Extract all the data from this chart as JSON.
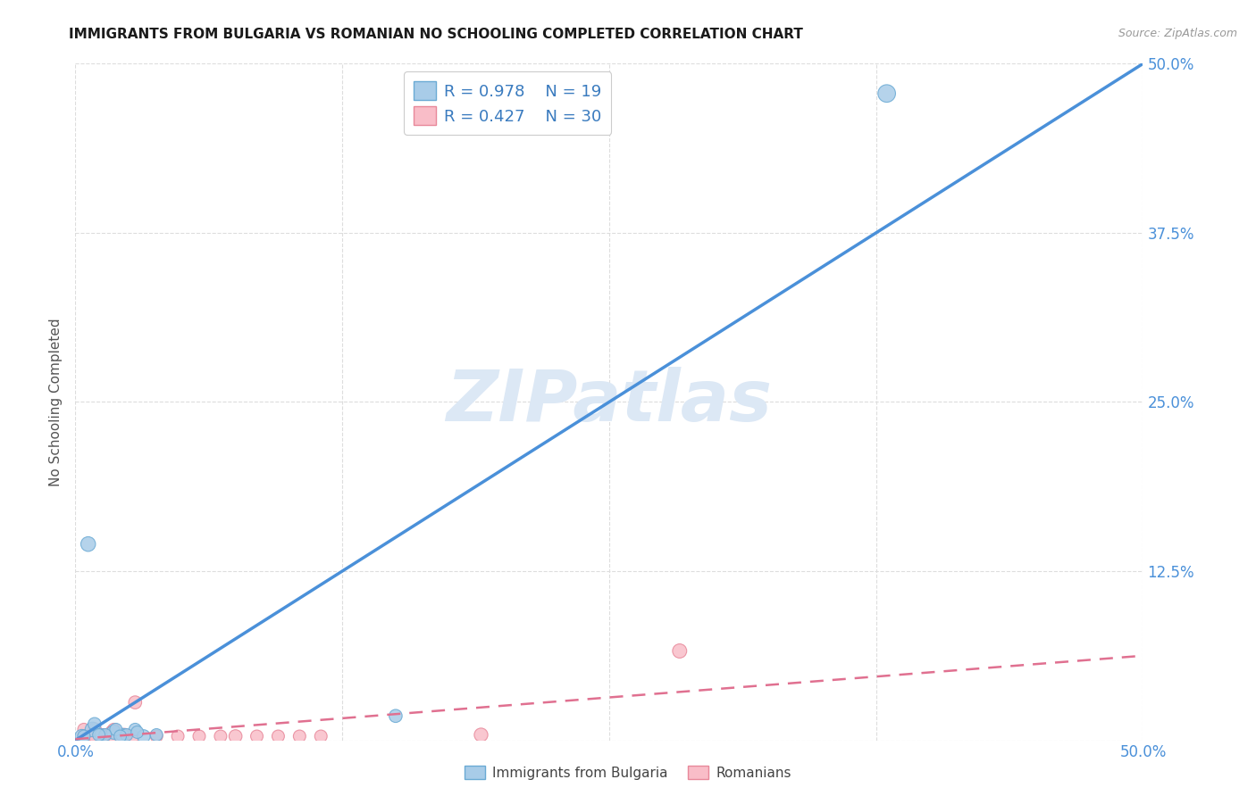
{
  "title": "IMMIGRANTS FROM BULGARIA VS ROMANIAN NO SCHOOLING COMPLETED CORRELATION CHART",
  "source": "Source: ZipAtlas.com",
  "ylabel": "No Schooling Completed",
  "xlim": [
    0.0,
    0.5
  ],
  "ylim": [
    0.0,
    0.5
  ],
  "xticks": [
    0.0,
    0.125,
    0.25,
    0.375,
    0.5
  ],
  "yticks": [
    0.0,
    0.125,
    0.25,
    0.375,
    0.5
  ],
  "xticklabels": [
    "0.0%",
    "",
    "",
    "",
    "50.0%"
  ],
  "yticklabels": [
    "",
    "12.5%",
    "25.0%",
    "37.5%",
    "50.0%"
  ],
  "bulgaria_color": "#a8cce8",
  "bulgaria_edge": "#6aaad4",
  "romanian_color": "#f9bdc8",
  "romanian_edge": "#e8889a",
  "bulgaria_line_color": "#4a90d9",
  "romanian_line_color": "#e07090",
  "watermark_color": "#dce8f5",
  "legend_r_bulgaria": "R = 0.978",
  "legend_n_bulgaria": "N = 19",
  "legend_r_romanian": "R = 0.427",
  "legend_n_romanian": "N = 30",
  "bulgaria_scatter_x": [
    0.003,
    0.008,
    0.012,
    0.018,
    0.022,
    0.028,
    0.032,
    0.038,
    0.009,
    0.019,
    0.024,
    0.029,
    0.014,
    0.021,
    0.011,
    0.004,
    0.006,
    0.38,
    0.15
  ],
  "bulgaria_scatter_y": [
    0.003,
    0.008,
    0.004,
    0.006,
    0.004,
    0.008,
    0.003,
    0.004,
    0.012,
    0.008,
    0.004,
    0.006,
    0.004,
    0.003,
    0.004,
    0.003,
    0.145,
    0.478,
    0.018
  ],
  "bulgaria_scatter_size": [
    120,
    140,
    100,
    130,
    110,
    100,
    110,
    100,
    110,
    100,
    100,
    100,
    100,
    100,
    100,
    100,
    140,
    200,
    110
  ],
  "romanian_scatter_x": [
    0.004,
    0.009,
    0.013,
    0.017,
    0.022,
    0.004,
    0.009,
    0.013,
    0.018,
    0.023,
    0.027,
    0.004,
    0.009,
    0.075,
    0.085,
    0.095,
    0.105,
    0.115,
    0.038,
    0.048,
    0.058,
    0.068,
    0.283,
    0.19,
    0.028,
    0.023,
    0.018,
    0.013,
    0.009,
    0.004
  ],
  "romanian_scatter_y": [
    0.003,
    0.008,
    0.004,
    0.006,
    0.004,
    0.008,
    0.004,
    0.003,
    0.008,
    0.004,
    0.003,
    0.003,
    0.003,
    0.003,
    0.003,
    0.003,
    0.003,
    0.003,
    0.003,
    0.003,
    0.003,
    0.003,
    0.066,
    0.004,
    0.028,
    0.004,
    0.003,
    0.003,
    0.003,
    0.003
  ],
  "romanian_scatter_size": [
    110,
    120,
    100,
    110,
    100,
    100,
    100,
    100,
    100,
    100,
    100,
    100,
    100,
    110,
    100,
    100,
    100,
    100,
    100,
    100,
    100,
    100,
    130,
    120,
    110,
    110,
    100,
    100,
    100,
    100
  ],
  "background_color": "#ffffff",
  "grid_color": "#dddddd"
}
